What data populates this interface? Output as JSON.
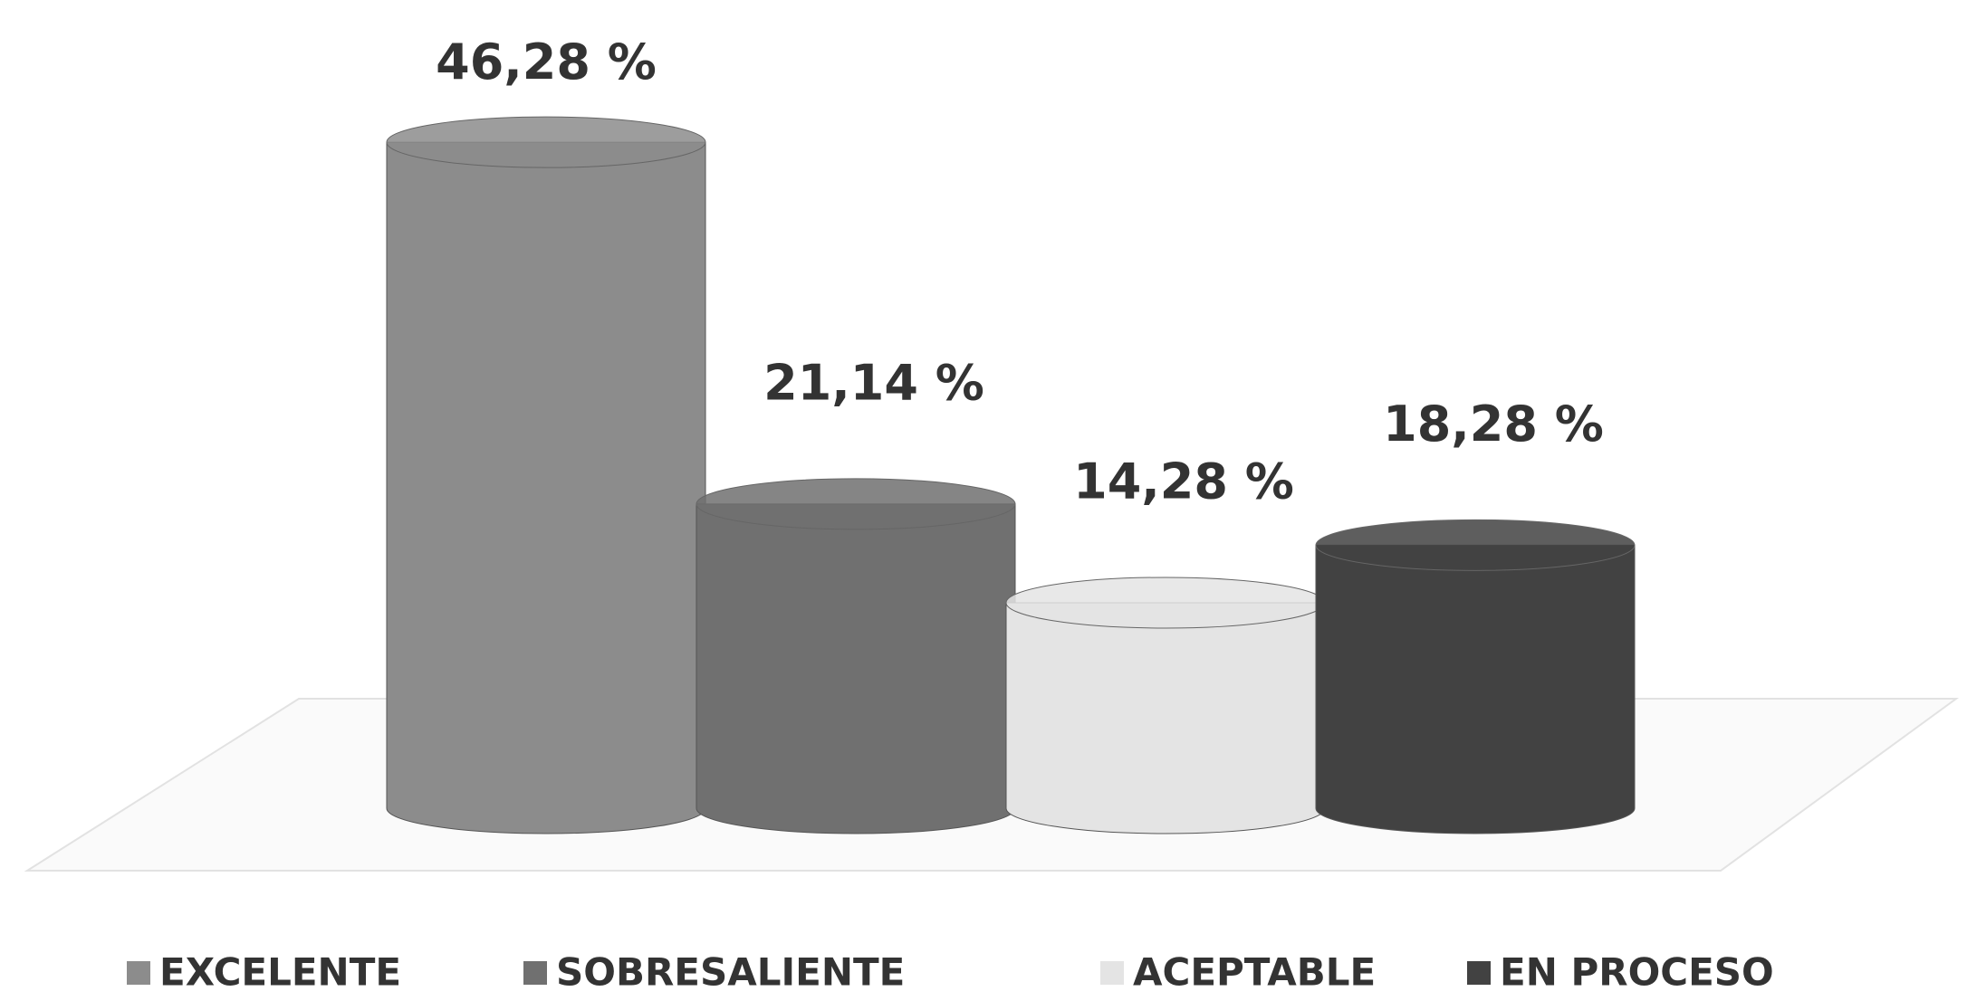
{
  "chart_data": {
    "type": "bar",
    "categories": [
      "EXCELENTE",
      "SOBRESALIENTE",
      "ACEPTABLE",
      "EN PROCESO"
    ],
    "values": [
      46.28,
      21.14,
      14.28,
      18.28
    ],
    "value_labels": [
      "46,28 %",
      "21,14 %",
      "14,28 %",
      "18,28 %"
    ],
    "colors": [
      "#8c8c8c",
      "#707070",
      "#e4e4e4",
      "#424242"
    ],
    "legend": "bottom"
  }
}
